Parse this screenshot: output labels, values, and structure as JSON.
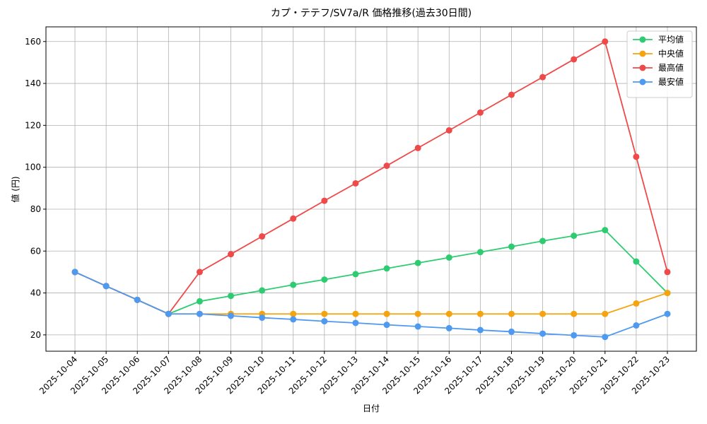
{
  "chart_data": {
    "type": "line",
    "title": "カプ・テテフ/SV7a/R 価格推移(過去30日間)",
    "xlabel": "日付",
    "ylabel": "値 (円)",
    "categories": [
      "2025-10-04",
      "2025-10-05",
      "2025-10-06",
      "2025-10-07",
      "2025-10-08",
      "2025-10-09",
      "2025-10-10",
      "2025-10-11",
      "2025-10-12",
      "2025-10-13",
      "2025-10-14",
      "2025-10-15",
      "2025-10-16",
      "2025-10-17",
      "2025-10-18",
      "2025-10-19",
      "2025-10-20",
      "2025-10-21",
      "2025-10-22",
      "2025-10-23"
    ],
    "series": [
      {
        "name": "平均値",
        "color": "#2ecc71",
        "values": [
          50,
          43.3,
          36.7,
          30,
          36,
          38.6,
          41.2,
          43.9,
          46.4,
          49,
          51.7,
          54.3,
          56.9,
          59.5,
          62.1,
          64.8,
          67.3,
          70,
          55,
          40
        ]
      },
      {
        "name": "中央値",
        "color": "#f5a30f",
        "values": [
          50,
          43.3,
          36.7,
          30,
          30,
          30,
          30,
          30,
          30,
          30,
          30,
          30,
          30,
          30,
          30,
          30,
          30,
          30,
          35,
          40
        ]
      },
      {
        "name": "最高値",
        "color": "#ef4a4a",
        "values": [
          50,
          43.3,
          36.7,
          30,
          50,
          58.5,
          67,
          75.5,
          84,
          92.3,
          100.7,
          109.2,
          117.6,
          126.1,
          134.6,
          143,
          151.5,
          160,
          105,
          50
        ]
      },
      {
        "name": "最安値",
        "color": "#4e9af1",
        "values": [
          50,
          43.3,
          36.7,
          30,
          30,
          29.1,
          28.2,
          27.4,
          26.5,
          25.7,
          24.8,
          24,
          23.2,
          22.3,
          21.5,
          20.6,
          19.8,
          19,
          24.5,
          30
        ]
      }
    ],
    "ylim": [
      12.2,
      167
    ],
    "yticks": [
      20,
      40,
      60,
      80,
      100,
      120,
      140,
      160
    ],
    "grid": true,
    "legend": "upper right"
  }
}
